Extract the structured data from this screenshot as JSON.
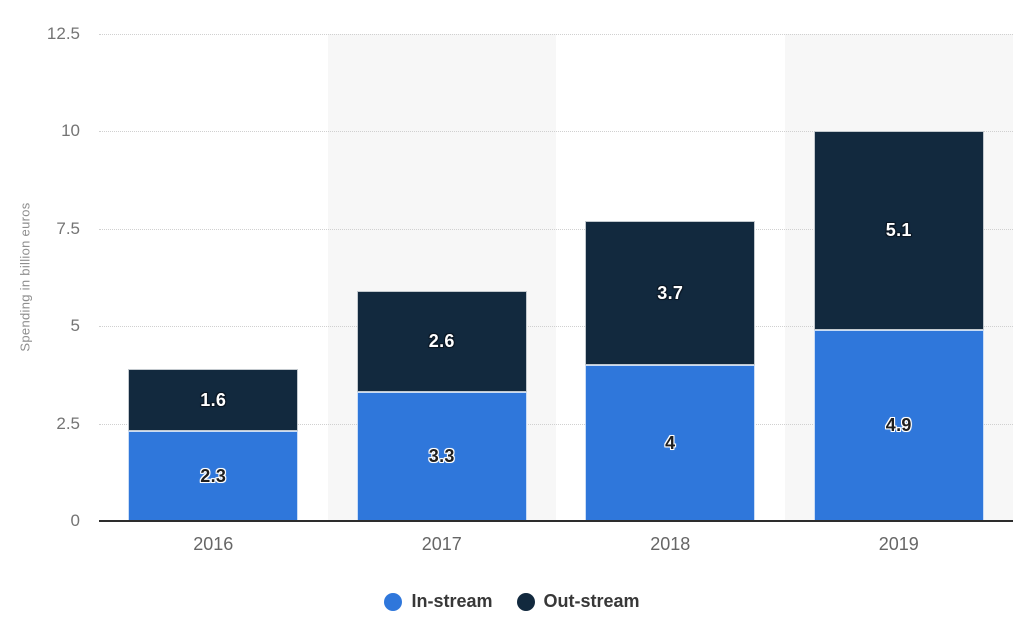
{
  "chart_data": {
    "type": "bar",
    "stacked": true,
    "title": "",
    "xlabel": "",
    "ylabel": "Spending in billion euros",
    "categories": [
      "2016",
      "2017",
      "2018",
      "2019"
    ],
    "series": [
      {
        "name": "In-stream",
        "color": "#2f77db",
        "values": [
          2.3,
          3.3,
          4,
          4.9
        ],
        "labels": [
          "2.3",
          "3.3",
          "4",
          "4.9"
        ],
        "label_text_color": "#1f1f1f",
        "label_outline_color": "#ffffff"
      },
      {
        "name": "Out-stream",
        "color": "#12293e",
        "values": [
          1.6,
          2.6,
          3.7,
          5.1
        ],
        "labels": [
          "1.6",
          "2.6",
          "3.7",
          "5.1"
        ],
        "label_text_color": "#ffffff",
        "label_outline_color": "#0b1724"
      }
    ],
    "ylim": [
      0,
      12.5
    ],
    "yticks": [
      0,
      2.5,
      5,
      7.5,
      10,
      12.5
    ],
    "ytick_labels": [
      "0",
      "2.5",
      "5",
      "7.5",
      "10",
      "12.5"
    ],
    "grid": "horizontal-dotted",
    "plot_band_shaded_columns": [
      1,
      3
    ],
    "legend_position": "bottom"
  },
  "legend": {
    "items": [
      {
        "label": "In-stream",
        "color": "#2f77db"
      },
      {
        "label": "Out-stream",
        "color": "#12293e"
      }
    ]
  },
  "colors": {
    "background": "#ffffff",
    "plot_band": "#f7f7f7",
    "gridline": "#d0d0d0",
    "axis_line": "#2d2d2d",
    "tick_label": "#747474",
    "x_label": "#666666",
    "y_axis_title": "#8e8e8e",
    "legend_text": "#383838"
  }
}
